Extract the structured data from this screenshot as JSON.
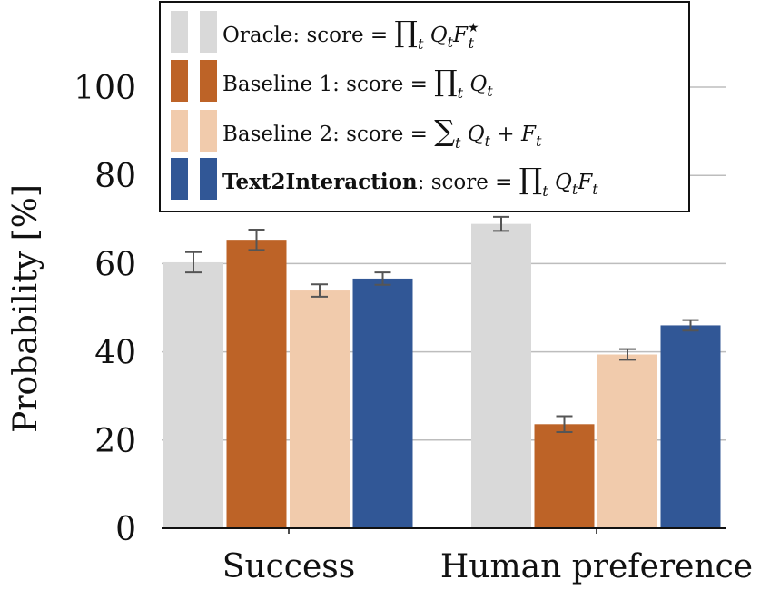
{
  "chart_data": {
    "type": "bar",
    "ylabel": "Probability [%]",
    "xlabel": "",
    "title": "",
    "categories": [
      "Success",
      "Human preference"
    ],
    "ylim": [
      0,
      115
    ],
    "yticks": [
      "0",
      "20",
      "40",
      "60",
      "80",
      "100"
    ],
    "grid": true,
    "legend_position": "top-center",
    "series": [
      {
        "name": "Oracle: score = ∏t QtFt★",
        "color": "#d9d9d9",
        "values": [
          60.3,
          69.0
        ],
        "errors": [
          2.3,
          1.6
        ]
      },
      {
        "name": "Baseline 1: score = ∏t Qt",
        "color": "#bd6327",
        "values": [
          65.4,
          23.6
        ],
        "errors": [
          2.3,
          1.8
        ]
      },
      {
        "name": "Baseline 2: score = ∑t Qt + Ft",
        "color": "#f1cbac",
        "values": [
          53.9,
          39.4
        ],
        "errors": [
          1.4,
          1.2
        ]
      },
      {
        "name": "Text2Interaction: score = ∏t QtFt",
        "color": "#315796",
        "values": [
          56.6,
          46.0
        ],
        "errors": [
          1.4,
          1.2
        ]
      }
    ]
  },
  "legend": {
    "entries": [
      {
        "bold": "",
        "text": "Oracle: score = ",
        "formula": "∏",
        "sub": "t",
        "tail": " Q",
        "tail_sub": "t",
        "tail2": "F",
        "tail2_sub": "t",
        "tail2_sup": "★"
      },
      {
        "bold": "",
        "text": "Baseline 1: score = ",
        "formula": "∏",
        "sub": "t",
        "tail": " Q",
        "tail_sub": "t",
        "tail2": "",
        "tail2_sub": "",
        "tail2_sup": ""
      },
      {
        "bold": "",
        "text": "Baseline 2: score = ",
        "formula": "∑",
        "sub": "t",
        "tail": " Q",
        "tail_sub": "t",
        "tail2": " + F",
        "tail2_sub": "t",
        "tail2_sup": ""
      },
      {
        "bold": "Text2Interaction",
        "text": ": score = ",
        "formula": "∏",
        "sub": "t",
        "tail": " Q",
        "tail_sub": "t",
        "tail2": "F",
        "tail2_sub": "t",
        "tail2_sup": ""
      }
    ]
  }
}
